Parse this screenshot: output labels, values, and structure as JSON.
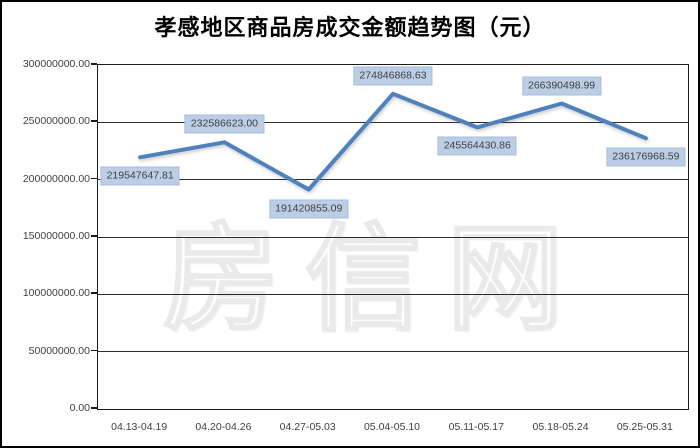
{
  "title": "孝感地区商品房成交金额趋势图（元）",
  "watermark": "房信网",
  "chart_data": {
    "type": "line",
    "title": "孝感地区商品房成交金额趋势图（元）",
    "categories": [
      "04.13-04.19",
      "04.20-04.26",
      "04.27-05.03",
      "05.04-05.10",
      "05.11-05.17",
      "05.18-05.24",
      "05.25-05.31"
    ],
    "values": [
      219547647.81,
      232586623.0,
      191420855.09,
      274846868.63,
      245564430.86,
      266390498.99,
      236176968.59
    ],
    "point_labels": [
      "219547647.81",
      "232586623.00",
      "191420855.09",
      "274846868.63",
      "245564430.86",
      "266390498.99",
      "236176968.59"
    ],
    "label_side": [
      "below",
      "above",
      "below",
      "above",
      "below",
      "above",
      "below"
    ],
    "y_tick_labels": [
      "300000000.00",
      "250000000.00",
      "200000000.00",
      "150000000.00",
      "100000000.00",
      "50000000.00",
      "0.00"
    ],
    "ylim": [
      0,
      300000000
    ],
    "xlabel": "",
    "ylabel": "",
    "grid": true,
    "legend": "none",
    "line_color": "#4f81bd",
    "label_bg": "#bccee6",
    "label_text_color": "#404040",
    "gridline_color": "#2b2b2b"
  }
}
